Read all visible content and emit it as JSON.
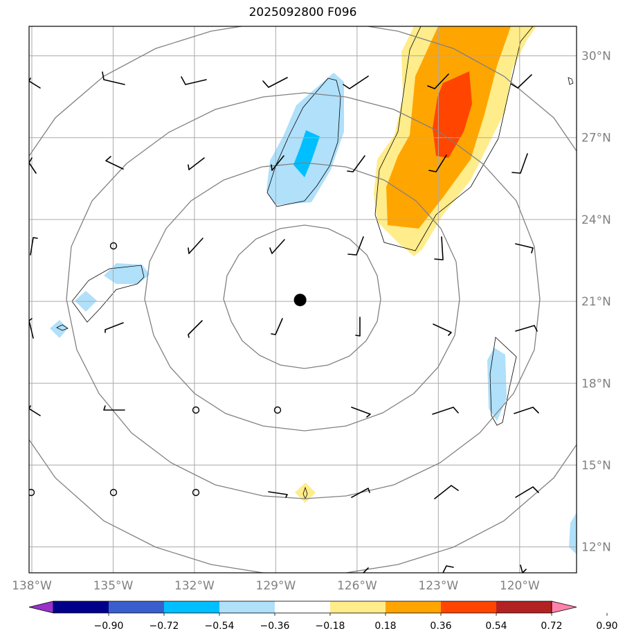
{
  "title": "2025092800 F096",
  "map": {
    "lon_range": [
      -138,
      -118
    ],
    "lat_range": [
      11,
      31
    ],
    "lat_labels": [
      "30°N",
      "27°N",
      "24°N",
      "21°N",
      "18°N",
      "15°N",
      "12°N"
    ],
    "lat_values": [
      30,
      27,
      24,
      21,
      18,
      15,
      12
    ],
    "lon_labels": [
      "138°W",
      "135°W",
      "132°W",
      "129°W",
      "126°W",
      "123°W",
      "120°W"
    ],
    "lon_values": [
      -138,
      -135,
      -132,
      -129,
      -126,
      -123,
      -120
    ],
    "center_marker": {
      "lon": -128.1,
      "lat": 21.05
    },
    "gridline_color": "#aaaaaa",
    "range_ring_color": "#808080"
  },
  "colorbar": {
    "tick_labels": [
      "−0.90",
      "−0.72",
      "−0.54",
      "−0.36",
      "−0.18",
      "0.18",
      "0.36",
      "0.54",
      "0.72",
      "0.90"
    ],
    "colors": [
      "#9932cc",
      "#00008b",
      "#3a5fcd",
      "#00bfff",
      "#b0e0fa",
      "#ffffff",
      "#ffec8b",
      "#ffa500",
      "#ff4500",
      "#b22222",
      "#ff82ab"
    ]
  },
  "chart_data": {
    "type": "map",
    "title": "2025092800 F096",
    "legend": "colorbar below map",
    "levels": [
      -0.9,
      -0.72,
      -0.54,
      -0.36,
      -0.18,
      0.18,
      0.36,
      0.54,
      0.72,
      0.9
    ]
  }
}
